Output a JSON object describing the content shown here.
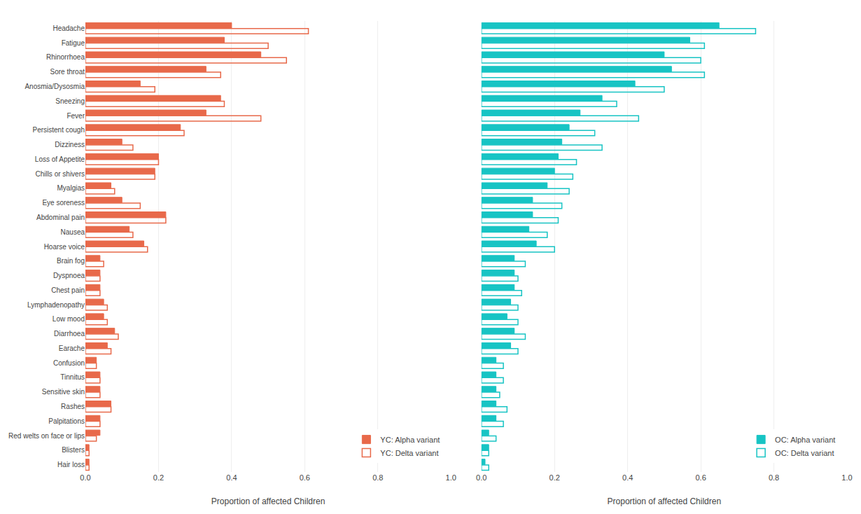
{
  "chart_data": [
    {
      "type": "bar",
      "orientation": "horizontal",
      "categories": [
        "Headache",
        "Fatigue",
        "Rhinorrhoea",
        "Sore throat",
        "Anosmia/Dysosmia",
        "Sneezing",
        "Fever",
        "Persistent cough",
        "Dizziness",
        "Loss of Appetite",
        "Chills or shivers",
        "Myalgias",
        "Eye soreness",
        "Abdominal pain",
        "Nausea",
        "Hoarse voice",
        "Brain fog",
        "Dyspnoea",
        "Chest pain",
        "Lymphadenopathy",
        "Low mood",
        "Diarrhoea",
        "Earache",
        "Confusion",
        "Tinnitus",
        "Sensitive skin",
        "Rashes",
        "Palpitations",
        "Red welts on face or lips",
        "Blisters",
        "Hair loss"
      ],
      "series": [
        {
          "name": "YC: Alpha variant",
          "color": "#E8694A",
          "marker": "filled",
          "values": [
            0.4,
            0.38,
            0.48,
            0.33,
            0.15,
            0.37,
            0.33,
            0.26,
            0.1,
            0.2,
            0.19,
            0.07,
            0.1,
            0.22,
            0.12,
            0.16,
            0.04,
            0.04,
            0.04,
            0.05,
            0.05,
            0.08,
            0.06,
            0.03,
            0.04,
            0.04,
            0.07,
            0.04,
            0.04,
            0.01,
            0.01
          ]
        },
        {
          "name": "YC: Delta variant",
          "color": "#E8694A",
          "marker": "outline",
          "values": [
            0.61,
            0.5,
            0.55,
            0.37,
            0.19,
            0.38,
            0.48,
            0.27,
            0.13,
            0.2,
            0.19,
            0.08,
            0.15,
            0.22,
            0.13,
            0.17,
            0.05,
            0.04,
            0.04,
            0.06,
            0.06,
            0.09,
            0.07,
            0.03,
            0.04,
            0.04,
            0.07,
            0.04,
            0.03,
            0.01,
            0.01
          ]
        }
      ],
      "xlabel": "Proportion of affected Children",
      "xlim": [
        0,
        1.0
      ],
      "xticks": [
        {
          "value": 0,
          "label": "0.0"
        },
        0.2,
        0.4,
        0.6,
        0.8,
        {
          "value": 1.0,
          "label": "1.0"
        }
      ],
      "grid": true,
      "legend": "lower right"
    },
    {
      "type": "bar",
      "orientation": "horizontal",
      "categories": [
        "Headache",
        "Fatigue",
        "Rhinorrhoea",
        "Sore throat",
        "Anosmia/Dysosmia",
        "Sneezing",
        "Fever",
        "Persistent cough",
        "Dizziness",
        "Loss of Appetite",
        "Chills or shivers",
        "Myalgias",
        "Eye soreness",
        "Abdominal pain",
        "Nausea",
        "Hoarse voice",
        "Brain fog",
        "Dyspnoea",
        "Chest pain",
        "Lymphadenopathy",
        "Low mood",
        "Diarrhoea",
        "Earache",
        "Confusion",
        "Tinnitus",
        "Sensitive skin",
        "Rashes",
        "Palpitations",
        "Red welts on face or lips",
        "Blisters",
        "Hair loss"
      ],
      "series": [
        {
          "name": "OC: Alpha variant",
          "color": "#17C4C4",
          "marker": "filled",
          "values": [
            0.65,
            0.57,
            0.5,
            0.52,
            0.42,
            0.33,
            0.27,
            0.24,
            0.22,
            0.21,
            0.2,
            0.18,
            0.14,
            0.14,
            0.13,
            0.15,
            0.09,
            0.09,
            0.09,
            0.08,
            0.07,
            0.09,
            0.08,
            0.04,
            0.04,
            0.04,
            0.04,
            0.04,
            0.02,
            0.02,
            0.01
          ]
        },
        {
          "name": "OC: Delta variant",
          "color": "#17C4C4",
          "marker": "outline",
          "values": [
            0.75,
            0.61,
            0.6,
            0.61,
            0.5,
            0.37,
            0.43,
            0.31,
            0.33,
            0.26,
            0.25,
            0.24,
            0.22,
            0.21,
            0.18,
            0.2,
            0.12,
            0.1,
            0.11,
            0.1,
            0.1,
            0.12,
            0.1,
            0.06,
            0.06,
            0.05,
            0.07,
            0.06,
            0.04,
            0.02,
            0.02
          ]
        }
      ],
      "xlabel": "Proportion of affected Children",
      "xlim": [
        0,
        1.0
      ],
      "xticks": [
        {
          "value": 0,
          "label": "0.0"
        },
        0.2,
        0.4,
        0.6,
        0.8,
        {
          "value": 1.0,
          "label": "1.0"
        }
      ],
      "grid": true,
      "legend": "lower right",
      "tick_labels": "x"
    }
  ]
}
